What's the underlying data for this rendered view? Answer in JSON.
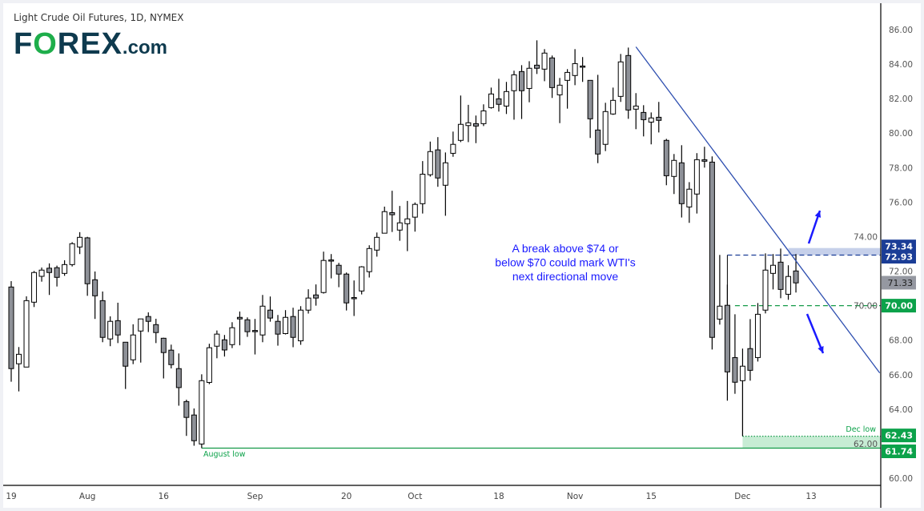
{
  "header": {
    "title": "Light Crude Oil Futures, 1D, NYMEX",
    "logo_text": "FOREX.com"
  },
  "chart_data": {
    "type": "candlestick",
    "title": "Light Crude Oil Futures, 1D, NYMEX",
    "ylim": [
      59.4,
      87.2
    ],
    "y_ticks": [
      "86.00",
      "84.00",
      "82.00",
      "80.00",
      "78.00",
      "76.00",
      "74.00",
      "72.00",
      "70.00",
      "68.00",
      "66.00",
      "64.00",
      "62.00",
      "60.00"
    ],
    "x_ticks": [
      "19",
      "Aug",
      "16",
      "Sep",
      "20",
      "Oct",
      "18",
      "Nov",
      "15",
      "Dec",
      "13"
    ],
    "x_tick_bar_index": [
      0,
      10,
      20,
      32,
      44,
      53,
      64,
      74,
      84,
      96,
      105
    ],
    "ohlc_fields": [
      "open",
      "high",
      "low",
      "close"
    ],
    "candles": [
      [
        71.08,
        71.42,
        65.59,
        66.35
      ],
      [
        66.63,
        67.6,
        65.03,
        67.18
      ],
      [
        66.44,
        70.54,
        66.44,
        70.29
      ],
      [
        70.2,
        72.01,
        69.92,
        71.92
      ],
      [
        71.7,
        72.21,
        71.39,
        72.06
      ],
      [
        72.17,
        72.45,
        70.62,
        71.92
      ],
      [
        72.2,
        72.32,
        71.11,
        71.64
      ],
      [
        71.87,
        72.63,
        71.73,
        72.38
      ],
      [
        72.38,
        73.68,
        72.27,
        73.59
      ],
      [
        73.4,
        74.26,
        72.99,
        73.96
      ],
      [
        73.93,
        73.99,
        70.57,
        71.27
      ],
      [
        71.5,
        71.98,
        69.23,
        70.57
      ],
      [
        70.29,
        70.82,
        67.88,
        68.16
      ],
      [
        68.07,
        69.38,
        67.65,
        69.09
      ],
      [
        69.13,
        70.17,
        67.83,
        68.3
      ],
      [
        67.88,
        67.88,
        65.17,
        66.49
      ],
      [
        66.86,
        68.92,
        66.61,
        68.3
      ],
      [
        68.53,
        69.23,
        66.7,
        69.23
      ],
      [
        69.37,
        69.61,
        68.47,
        69.09
      ],
      [
        68.9,
        69.24,
        67.83,
        68.44
      ],
      [
        68.11,
        68.14,
        65.78,
        67.28
      ],
      [
        67.42,
        67.74,
        66.36,
        66.58
      ],
      [
        66.35,
        67.23,
        64.2,
        65.25
      ],
      [
        64.44,
        64.55,
        62.45,
        63.52
      ],
      [
        63.66,
        64.04,
        61.88,
        62.17
      ],
      [
        61.98,
        66.02,
        61.74,
        65.65
      ],
      [
        65.55,
        67.79,
        65.45,
        67.56
      ],
      [
        67.65,
        68.56,
        66.95,
        68.35
      ],
      [
        68.02,
        68.3,
        67.05,
        67.43
      ],
      [
        67.74,
        69.04,
        67.54,
        68.72
      ],
      [
        69.32,
        69.66,
        67.7,
        69.23
      ],
      [
        69.18,
        69.32,
        68.19,
        68.49
      ],
      [
        68.56,
        69.23,
        67.17,
        68.53
      ],
      [
        68.3,
        70.62,
        67.88,
        69.97
      ],
      [
        69.74,
        70.53,
        69.07,
        69.28
      ],
      [
        69.09,
        69.46,
        67.68,
        68.35
      ],
      [
        68.38,
        69.74,
        68.33,
        69.32
      ],
      [
        69.37,
        69.88,
        67.59,
        68.16
      ],
      [
        67.96,
        69.97,
        67.73,
        69.74
      ],
      [
        69.74,
        70.95,
        69.54,
        70.44
      ],
      [
        70.62,
        71.23,
        70.0,
        70.44
      ],
      [
        70.76,
        73.13,
        70.7,
        72.62
      ],
      [
        72.65,
        72.99,
        71.58,
        72.62
      ],
      [
        72.34,
        72.48,
        71.07,
        71.83
      ],
      [
        71.83,
        71.92,
        69.72,
        70.16
      ],
      [
        70.47,
        71.46,
        69.4,
        70.45
      ],
      [
        70.85,
        72.29,
        70.65,
        72.25
      ],
      [
        71.97,
        73.5,
        71.63,
        73.31
      ],
      [
        73.22,
        74.24,
        72.84,
        73.96
      ],
      [
        74.2,
        75.74,
        74.2,
        75.45
      ],
      [
        75.39,
        76.66,
        74.27,
        75.27
      ],
      [
        74.38,
        75.78,
        73.76,
        74.8
      ],
      [
        74.75,
        76.07,
        73.16,
        75.03
      ],
      [
        75.13,
        75.98,
        74.29,
        75.87
      ],
      [
        75.91,
        78.38,
        75.34,
        77.62
      ],
      [
        77.59,
        79.51,
        77.48,
        78.93
      ],
      [
        79.03,
        79.77,
        76.89,
        77.4
      ],
      [
        76.98,
        78.88,
        75.21,
        78.28
      ],
      [
        78.83,
        80.09,
        78.63,
        79.35
      ],
      [
        79.58,
        82.18,
        79.48,
        80.51
      ],
      [
        80.44,
        81.64,
        79.48,
        80.6
      ],
      [
        80.55,
        81.02,
        79.42,
        80.41
      ],
      [
        80.55,
        81.67,
        80.41,
        81.29
      ],
      [
        81.48,
        82.64,
        81.42,
        82.27
      ],
      [
        81.99,
        83.15,
        81.25,
        81.67
      ],
      [
        81.57,
        82.97,
        81.11,
        82.41
      ],
      [
        82.46,
        83.62,
        80.78,
        83.38
      ],
      [
        83.57,
        83.94,
        80.82,
        82.46
      ],
      [
        82.59,
        84.17,
        81.79,
        83.76
      ],
      [
        83.94,
        85.38,
        83.43,
        83.76
      ],
      [
        83.71,
        84.87,
        83.01,
        84.64
      ],
      [
        84.36,
        84.5,
        82.04,
        82.64
      ],
      [
        82.22,
        83.2,
        80.58,
        82.78
      ],
      [
        83.06,
        83.71,
        81.42,
        83.52
      ],
      [
        83.34,
        84.87,
        82.78,
        84.03
      ],
      [
        83.89,
        84.41,
        82.97,
        83.86
      ],
      [
        83.06,
        83.06,
        79.72,
        80.83
      ],
      [
        80.18,
        83.38,
        78.26,
        78.79
      ],
      [
        79.35,
        81.76,
        78.96,
        81.25
      ],
      [
        81.11,
        82.64,
        81.06,
        81.9
      ],
      [
        82.13,
        84.59,
        81.81,
        84.13
      ],
      [
        84.5,
        84.96,
        80.83,
        81.34
      ],
      [
        81.39,
        82.32,
        80.23,
        81.57
      ],
      [
        81.2,
        81.62,
        79.81,
        80.78
      ],
      [
        80.64,
        81.2,
        79.35,
        80.88
      ],
      [
        80.92,
        81.81,
        80.04,
        80.74
      ],
      [
        79.58,
        79.67,
        76.98,
        77.53
      ],
      [
        77.49,
        78.79,
        76.47,
        78.42
      ],
      [
        78.28,
        79.3,
        75.11,
        75.91
      ],
      [
        75.72,
        77.16,
        74.8,
        76.75
      ],
      [
        76.47,
        78.84,
        75.34,
        78.46
      ],
      [
        78.46,
        79.21,
        78.0,
        78.37
      ],
      [
        78.32,
        78.65,
        67.46,
        68.16
      ],
      [
        69.22,
        72.94,
        68.9,
        69.97
      ],
      [
        70.02,
        71.22,
        64.49,
        66.16
      ],
      [
        66.99,
        69.5,
        64.89,
        65.56
      ],
      [
        65.65,
        67.51,
        62.45,
        66.49
      ],
      [
        67.51,
        69.22,
        65.65,
        66.25
      ],
      [
        66.99,
        70.15,
        66.76,
        69.5
      ],
      [
        69.74,
        73.03,
        69.55,
        72.06
      ],
      [
        71.87,
        72.99,
        70.94,
        72.34
      ],
      [
        72.52,
        73.31,
        70.43,
        70.94
      ],
      [
        70.66,
        72.34,
        70.34,
        71.69
      ],
      [
        72.01,
        72.99,
        70.76,
        71.32
      ]
    ],
    "last_price": "71.33",
    "price_labels": [
      {
        "text": "73.34",
        "value": 73.34,
        "color": "#1b3d96"
      },
      {
        "text": "72.93",
        "value": 72.93,
        "color": "#1b3d96"
      },
      {
        "text": "71.33",
        "value": 71.33,
        "color": "#9598a1"
      },
      {
        "text": "70.00",
        "value": 70.0,
        "color": "#0ca24a"
      },
      {
        "text": "62.43",
        "value": 62.43,
        "color": "#0ca24a"
      },
      {
        "text": "61.74",
        "value": 61.74,
        "color": "#0ca24a"
      }
    ],
    "trendline": {
      "from": {
        "bar": 82,
        "price": 85.0
      },
      "to": {
        "bar": 114,
        "price": 66.1
      },
      "color": "#2e4fb0"
    },
    "levels": [
      {
        "price": 72.93,
        "style": "dashed",
        "color": "#1b3d96",
        "from_bar": 94
      },
      {
        "price": 70.0,
        "style": "dashed",
        "color": "#149a48",
        "from_bar": 95
      },
      {
        "price": 62.43,
        "style": "dotted",
        "color": "#149a48",
        "from_bar": 96
      },
      {
        "price": 61.74,
        "style": "solid",
        "color": "#149a48",
        "from_bar": 25
      }
    ],
    "zones": [
      {
        "from": 72.93,
        "to": 73.34,
        "color": "#c6d0ea",
        "from_bar": 102
      },
      {
        "from": 61.74,
        "to": 62.43,
        "color": "#c7ecd4",
        "from_bar": 96
      }
    ],
    "annotations": {
      "august_low": "August low",
      "dec_low": "Dec low",
      "commentary": [
        "A break above $74 or",
        "below $70 could mark WTI's",
        "next directional move"
      ]
    },
    "colors": {
      "bull": "#ffffff",
      "bear": "#8e9198",
      "outline": "#000000",
      "annotation": "#1a1aff",
      "green": "#0ca24a"
    }
  }
}
